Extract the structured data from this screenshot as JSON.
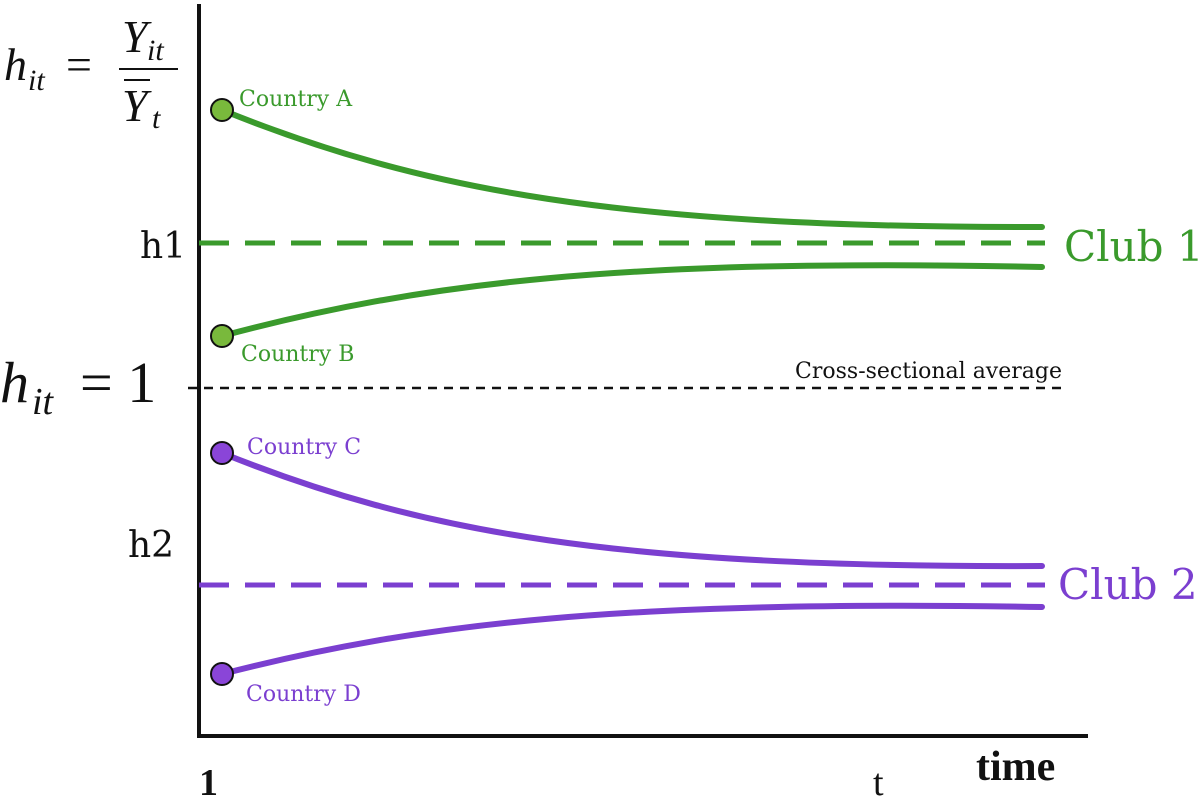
{
  "formula": {
    "lhs_base": "h",
    "lhs_sub": "it",
    "equals": "=",
    "num_base": "Y",
    "num_sub": "it",
    "den_base": "Y",
    "den_sub": "t"
  },
  "baseline": {
    "label_base": "h",
    "label_sub": "it",
    "label_value": "= 1",
    "caption": "Cross-sectional average"
  },
  "y_labels": {
    "h1": "h1",
    "h2": "h2"
  },
  "x_labels": {
    "start": "1",
    "end": "t",
    "axis": "time"
  },
  "clubs": [
    {
      "name": "Club 1",
      "color": "#3a9a2c",
      "marker_color": "#79b93c",
      "countries": [
        {
          "label": "Country A",
          "start_h_rel": 0.83,
          "end_h_rel": 0.11
        },
        {
          "label": "Country B",
          "start_h_rel": -0.58,
          "end_h_rel": -0.15
        }
      ]
    },
    {
      "name": "Club 2",
      "color": "#7b3fd0",
      "marker_color": "#8a45d8",
      "countries": [
        {
          "label": "Country C",
          "start_h_rel": 0.82,
          "end_h_rel": 0.12
        },
        {
          "label": "Country D",
          "start_h_rel": -0.59,
          "end_h_rel": -0.14
        }
      ]
    }
  ],
  "colors": {
    "axis": "#111111",
    "baseline": "#111111"
  }
}
